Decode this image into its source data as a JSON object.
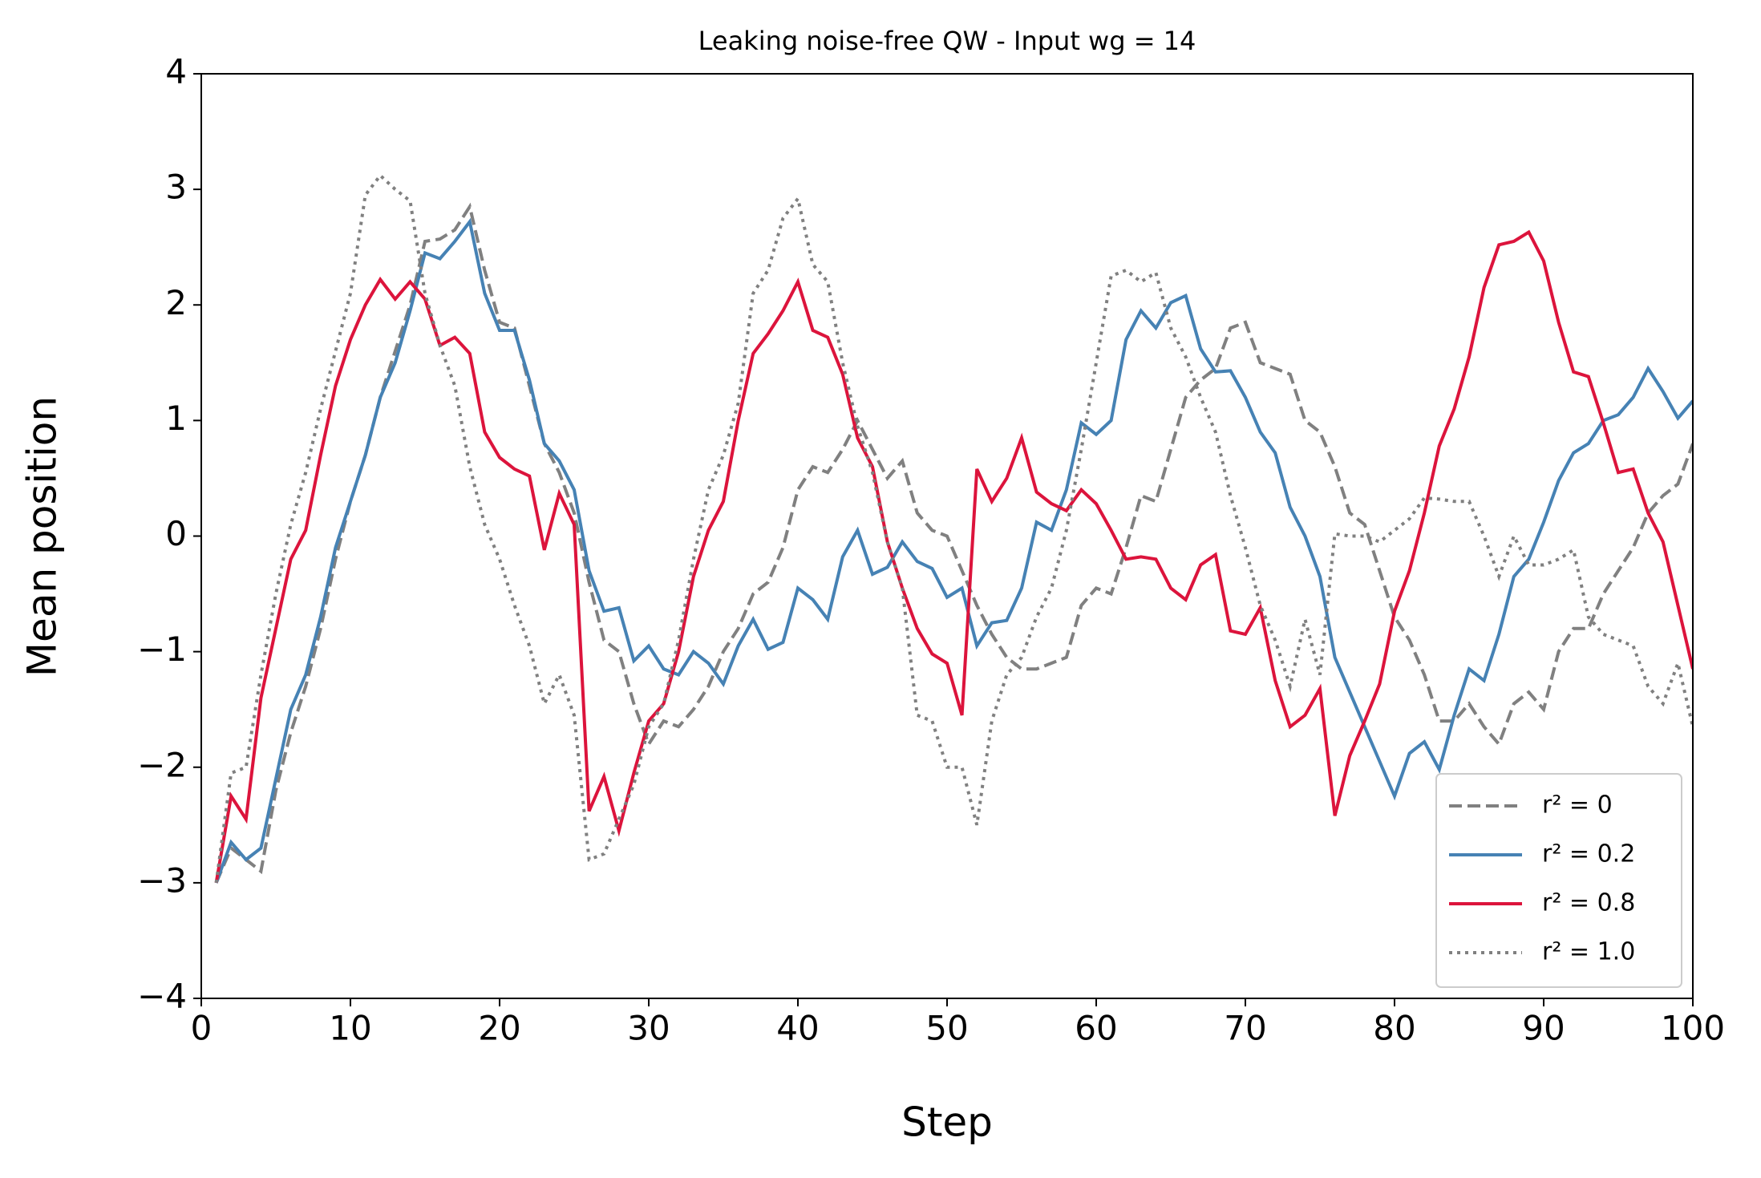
{
  "chart_data": {
    "type": "line",
    "title": "Leaking noise-free QW - Input wg = 14",
    "x_label": "Step",
    "y_label": "Mean position",
    "x": [
      1,
      2,
      3,
      4,
      5,
      6,
      7,
      8,
      9,
      10,
      11,
      12,
      13,
      14,
      15,
      16,
      17,
      18,
      19,
      20,
      21,
      22,
      23,
      24,
      25,
      26,
      27,
      28,
      29,
      30,
      31,
      32,
      33,
      34,
      35,
      36,
      37,
      38,
      39,
      40,
      41,
      42,
      43,
      44,
      45,
      46,
      47,
      48,
      49,
      50,
      51,
      52,
      53,
      54,
      55,
      56,
      57,
      58,
      59,
      60,
      61,
      62,
      63,
      64,
      65,
      66,
      67,
      68,
      69,
      70,
      71,
      72,
      73,
      74,
      75,
      76,
      77,
      78,
      79,
      80,
      81,
      82,
      83,
      84,
      85,
      86,
      87,
      88,
      89,
      90,
      91,
      92,
      93,
      94,
      95,
      96,
      97,
      98,
      99,
      100
    ],
    "series": [
      {
        "name": "r² = 0",
        "color": "#808080",
        "linestyle": "dashed",
        "values": [
          -3,
          -2.7,
          -2.8,
          -2.9,
          -2.2,
          -1.7,
          -1.3,
          -0.8,
          -0.2,
          0.3,
          0.7,
          1.2,
          1.6,
          2.0,
          2.55,
          2.57,
          2.65,
          2.85,
          2.3,
          1.85,
          1.8,
          1.3,
          0.8,
          0.55,
          0.2,
          -0.4,
          -0.9,
          -1.0,
          -1.45,
          -1.8,
          -1.6,
          -1.65,
          -1.5,
          -1.3,
          -1.0,
          -0.8,
          -0.5,
          -0.4,
          -0.1,
          0.4,
          0.6,
          0.55,
          0.75,
          1.0,
          0.75,
          0.5,
          0.65,
          0.2,
          0.05,
          0.0,
          -0.3,
          -0.6,
          -0.85,
          -1.05,
          -1.15,
          -1.15,
          -1.1,
          -1.05,
          -0.6,
          -0.45,
          -0.5,
          -0.1,
          0.35,
          0.3,
          0.75,
          1.2,
          1.35,
          1.45,
          1.8,
          1.85,
          1.5,
          1.45,
          1.4,
          1.0,
          0.9,
          0.6,
          0.2,
          0.1,
          -0.3,
          -0.7,
          -0.9,
          -1.2,
          -1.6,
          -1.6,
          -1.45,
          -1.65,
          -1.8,
          -1.45,
          -1.35,
          -1.5,
          -1.0,
          -0.8,
          -0.8,
          -0.5,
          -0.3,
          -0.1,
          0.2,
          0.35,
          0.45,
          0.8
        ]
      },
      {
        "name": "r² = 0.2",
        "color": "#4682b4",
        "linestyle": "solid",
        "values": [
          -3,
          -2.65,
          -2.8,
          -2.7,
          -2.1,
          -1.5,
          -1.2,
          -0.7,
          -0.1,
          0.3,
          0.7,
          1.2,
          1.5,
          1.95,
          2.45,
          2.4,
          2.55,
          2.72,
          2.1,
          1.78,
          1.78,
          1.35,
          0.8,
          0.65,
          0.4,
          -0.3,
          -0.65,
          -0.62,
          -1.08,
          -0.95,
          -1.15,
          -1.2,
          -1.0,
          -1.1,
          -1.28,
          -0.95,
          -0.72,
          -0.98,
          -0.92,
          -0.45,
          -0.55,
          -0.72,
          -0.18,
          0.05,
          -0.33,
          -0.27,
          -0.05,
          -0.22,
          -0.28,
          -0.53,
          -0.45,
          -0.95,
          -0.75,
          -0.73,
          -0.45,
          0.12,
          0.05,
          0.4,
          0.98,
          0.88,
          1.0,
          1.7,
          1.95,
          1.8,
          2.02,
          2.08,
          1.62,
          1.42,
          1.43,
          1.2,
          0.9,
          0.72,
          0.25,
          0.0,
          -0.35,
          -1.05,
          -1.35,
          -1.65,
          -1.95,
          -2.25,
          -1.88,
          -1.78,
          -2.02,
          -1.55,
          -1.15,
          -1.25,
          -0.85,
          -0.35,
          -0.2,
          0.12,
          0.48,
          0.72,
          0.8,
          1.0,
          1.05,
          1.2,
          1.45,
          1.25,
          1.02,
          1.17
        ]
      },
      {
        "name": "r² = 0.8",
        "color": "#dc143c",
        "linestyle": "solid",
        "values": [
          -3,
          -2.25,
          -2.45,
          -1.4,
          -0.8,
          -0.2,
          0.05,
          0.7,
          1.3,
          1.7,
          2.0,
          2.22,
          2.05,
          2.2,
          2.05,
          1.65,
          1.72,
          1.58,
          0.9,
          0.68,
          0.58,
          0.52,
          -0.12,
          0.37,
          0.1,
          -2.38,
          -2.08,
          -2.55,
          -2.05,
          -1.6,
          -1.45,
          -1.0,
          -0.35,
          0.05,
          0.3,
          1.0,
          1.58,
          1.75,
          1.95,
          2.2,
          1.78,
          1.72,
          1.4,
          0.85,
          0.6,
          -0.05,
          -0.45,
          -0.8,
          -1.02,
          -1.1,
          -1.55,
          0.58,
          0.3,
          0.5,
          0.85,
          0.38,
          0.28,
          0.22,
          0.4,
          0.28,
          0.05,
          -0.2,
          -0.18,
          -0.2,
          -0.45,
          -0.55,
          -0.25,
          -0.16,
          -0.82,
          -0.85,
          -0.62,
          -1.25,
          -1.65,
          -1.55,
          -1.32,
          -2.42,
          -1.9,
          -1.6,
          -1.28,
          -0.65,
          -0.3,
          0.2,
          0.78,
          1.1,
          1.55,
          2.15,
          2.52,
          2.55,
          2.63,
          2.38,
          1.85,
          1.42,
          1.38,
          0.98,
          0.55,
          0.58,
          0.2,
          -0.05,
          -0.6,
          -1.15
        ]
      },
      {
        "name": "r² = 1.0",
        "color": "#808080",
        "linestyle": "dotted",
        "values": [
          -3,
          -2.05,
          -2.0,
          -1.2,
          -0.5,
          0.1,
          0.55,
          1.1,
          1.6,
          2.1,
          2.95,
          3.12,
          3.0,
          2.9,
          2.1,
          1.65,
          1.3,
          0.6,
          0.1,
          -0.2,
          -0.6,
          -0.95,
          -1.45,
          -1.2,
          -1.55,
          -2.8,
          -2.75,
          -2.45,
          -2.15,
          -1.65,
          -1.45,
          -0.9,
          -0.2,
          0.4,
          0.7,
          1.15,
          2.1,
          2.3,
          2.75,
          2.92,
          2.35,
          2.2,
          1.5,
          0.95,
          0.55,
          -0.05,
          -0.45,
          -1.55,
          -1.6,
          -2.0,
          -2.0,
          -2.5,
          -1.6,
          -1.2,
          -1.05,
          -0.7,
          -0.45,
          0.05,
          0.75,
          1.5,
          2.25,
          2.3,
          2.2,
          2.28,
          1.8,
          1.55,
          1.2,
          0.9,
          0.35,
          -0.1,
          -0.6,
          -0.9,
          -1.3,
          -0.72,
          -1.2,
          0.02,
          0.0,
          0.0,
          -0.05,
          0.05,
          0.15,
          0.33,
          0.32,
          0.3,
          0.3,
          0.0,
          -0.35,
          0.0,
          -0.25,
          -0.25,
          -0.2,
          -0.12,
          -0.7,
          -0.85,
          -0.9,
          -0.95,
          -1.3,
          -1.45,
          -1.1,
          -1.65
        ]
      }
    ],
    "xlim": [
      0,
      100
    ],
    "xticks": [
      0,
      10,
      20,
      30,
      40,
      50,
      60,
      70,
      80,
      90,
      100
    ],
    "ylim": [
      -4,
      4
    ],
    "yticks": [
      {
        "value": -4,
        "label": "−4"
      },
      {
        "value": -3,
        "label": "−3"
      },
      {
        "value": -2,
        "label": "−2"
      },
      {
        "value": -1,
        "label": "−1"
      },
      0,
      1,
      2,
      3,
      4
    ],
    "grid": false,
    "legend": "lower right"
  }
}
